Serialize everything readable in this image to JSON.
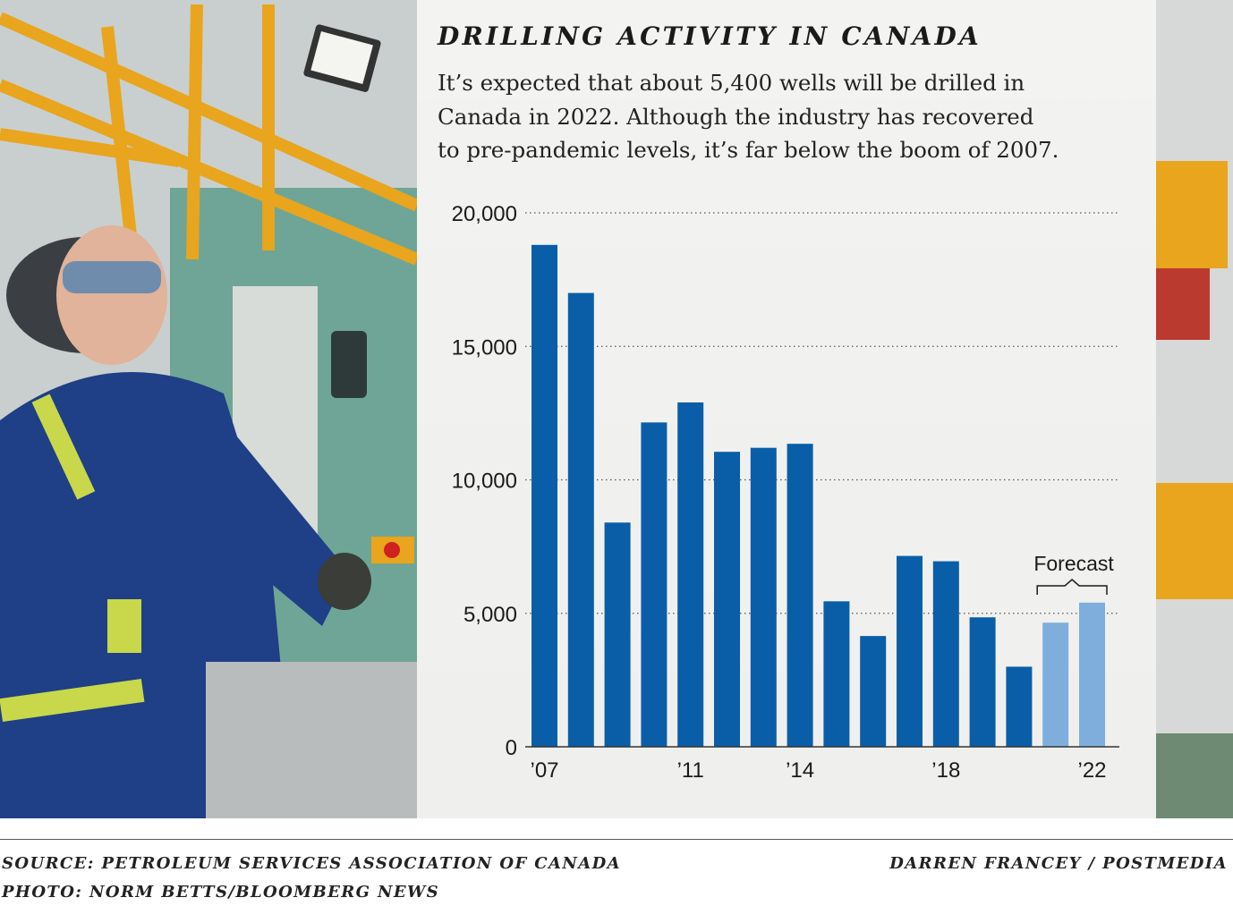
{
  "header": {
    "title": "DRILLING ACTIVITY IN CANADA",
    "subtitle_lines": [
      "It’s expected that about 5,400 wells will be drilled in",
      "Canada in 2022. Although the industry has recovered",
      "to pre-pandemic levels, it’s far below the boom of 2007."
    ]
  },
  "chart_data": {
    "type": "bar",
    "categories": [
      "2007",
      "2008",
      "2009",
      "2010",
      "2011",
      "2012",
      "2013",
      "2014",
      "2015",
      "2016",
      "2017",
      "2018",
      "2019",
      "2020",
      "2021",
      "2022"
    ],
    "values": [
      18800,
      17000,
      8400,
      12150,
      12900,
      11050,
      11200,
      11350,
      5450,
      4150,
      7150,
      6950,
      4850,
      3000,
      4650,
      5400
    ],
    "forecast_from_index": 14,
    "ylim": [
      0,
      20000
    ],
    "y_ticks": [
      0,
      5000,
      10000,
      15000,
      20000
    ],
    "y_tick_labels": [
      "0",
      "5,000",
      "10,000",
      "15,000",
      "20,000"
    ],
    "x_tick_labels": [
      {
        "index": 0,
        "label": "’07"
      },
      {
        "index": 4,
        "label": "’11"
      },
      {
        "index": 7,
        "label": "’14"
      },
      {
        "index": 11,
        "label": "’18"
      },
      {
        "index": 15,
        "label": "’22"
      }
    ],
    "annotation": "Forecast",
    "grid": "dotted horizontal",
    "colors": {
      "actual": "#0a5ea8",
      "forecast": "#7faedd"
    }
  },
  "footer": {
    "source": "SOURCE: PETROLEUM SERVICES ASSOCIATION OF CANADA",
    "photo": "PHOTO: NORM BETTS/BLOOMBERG NEWS",
    "byline": "DARREN FRANCEY / POSTMEDIA"
  }
}
